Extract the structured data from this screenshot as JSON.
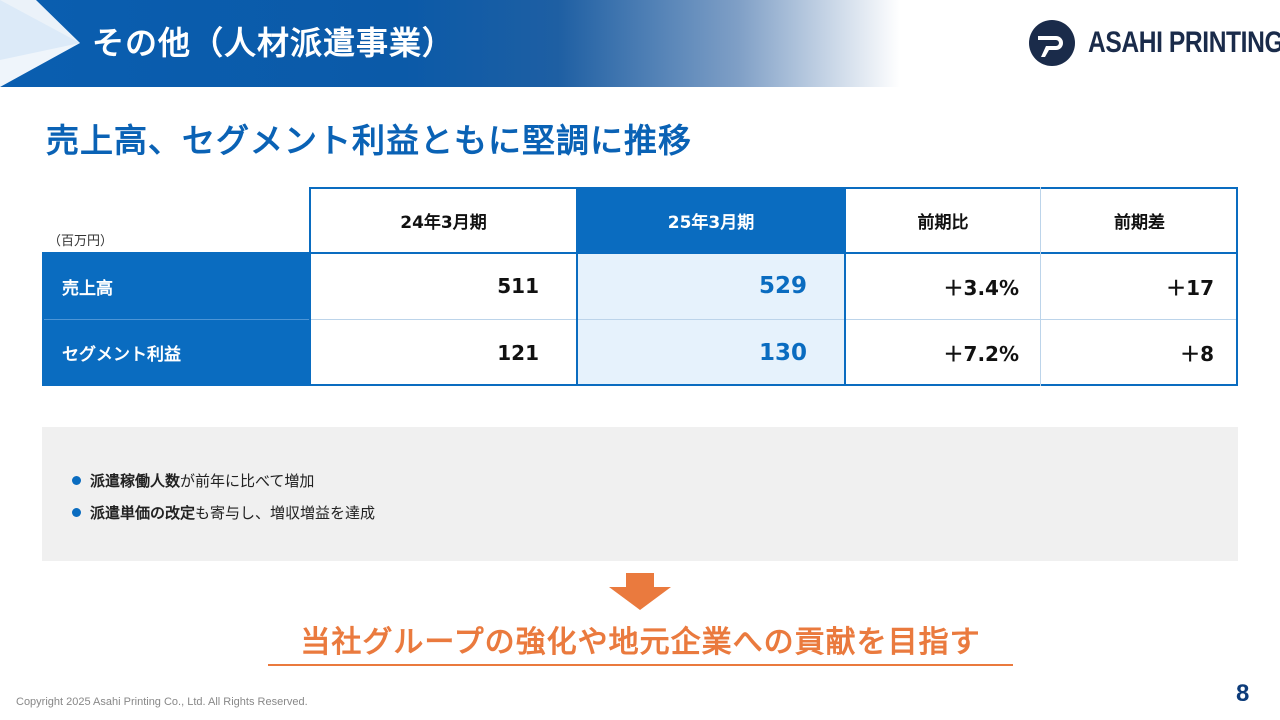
{
  "header": {
    "title": "その他（人材派遣事業）"
  },
  "logo": {
    "text": "ASAHI PRINTING",
    "icon": "asahi-p-logo-icon"
  },
  "headline": "売上高、セグメント利益ともに堅調に推移",
  "table": {
    "unit": "（百万円）",
    "columns": [
      "24年3月期",
      "25年3月期",
      "前期比",
      "前期差"
    ],
    "rows": [
      {
        "label": "売上高",
        "values": [
          "511",
          "529",
          "＋3.4%",
          "＋17"
        ]
      },
      {
        "label": "セグメント利益",
        "values": [
          "121",
          "130",
          "＋7.2%",
          "＋8"
        ]
      }
    ]
  },
  "notes": [
    {
      "bold": "派遣稼働人数",
      "rest": "が前年に比べて増加"
    },
    {
      "bold": "派遣単価の改定",
      "rest": "も寄与し、増収増益を達成"
    }
  ],
  "conclusion": "当社グループの強化や地元企業への貢献を目指す",
  "footer": {
    "copyright": "Copyright 2025 Asahi Printing Co., Ltd. All Rights Reserved.",
    "page_number": "8"
  },
  "colors": {
    "primary_blue": "#0a6cc0",
    "highlight_bg": "#e6f2fc",
    "accent_orange": "#ea7a3e",
    "note_bg": "#f0f0f0"
  }
}
